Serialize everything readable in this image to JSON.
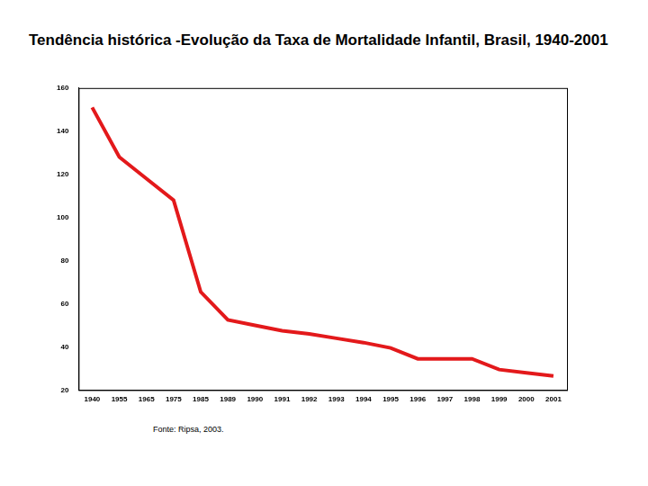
{
  "chart_data": {
    "type": "line",
    "title": "Tendência histórica -Evolução da Taxa de Mortalidade Infantil, Brasil, 1940-2001",
    "categories": [
      "1940",
      "1955",
      "1965",
      "1975",
      "1985",
      "1989",
      "1990",
      "1991",
      "1992",
      "1993",
      "1994",
      "1995",
      "1996",
      "1997",
      "1998",
      "1999",
      "2000",
      "2001"
    ],
    "values": [
      151,
      128,
      118,
      108,
      65.5,
      52.5,
      50,
      47.5,
      46,
      44,
      42,
      39.5,
      34.5,
      34.5,
      34.5,
      29.5,
      28,
      26.5
    ],
    "color": "#e3191b",
    "ylim": [
      20,
      160
    ],
    "yticks": [
      20,
      40,
      60,
      80,
      100,
      120,
      140,
      160
    ],
    "grid": false,
    "annotations": [
      "Fonte: Ripsa, 2003."
    ]
  }
}
